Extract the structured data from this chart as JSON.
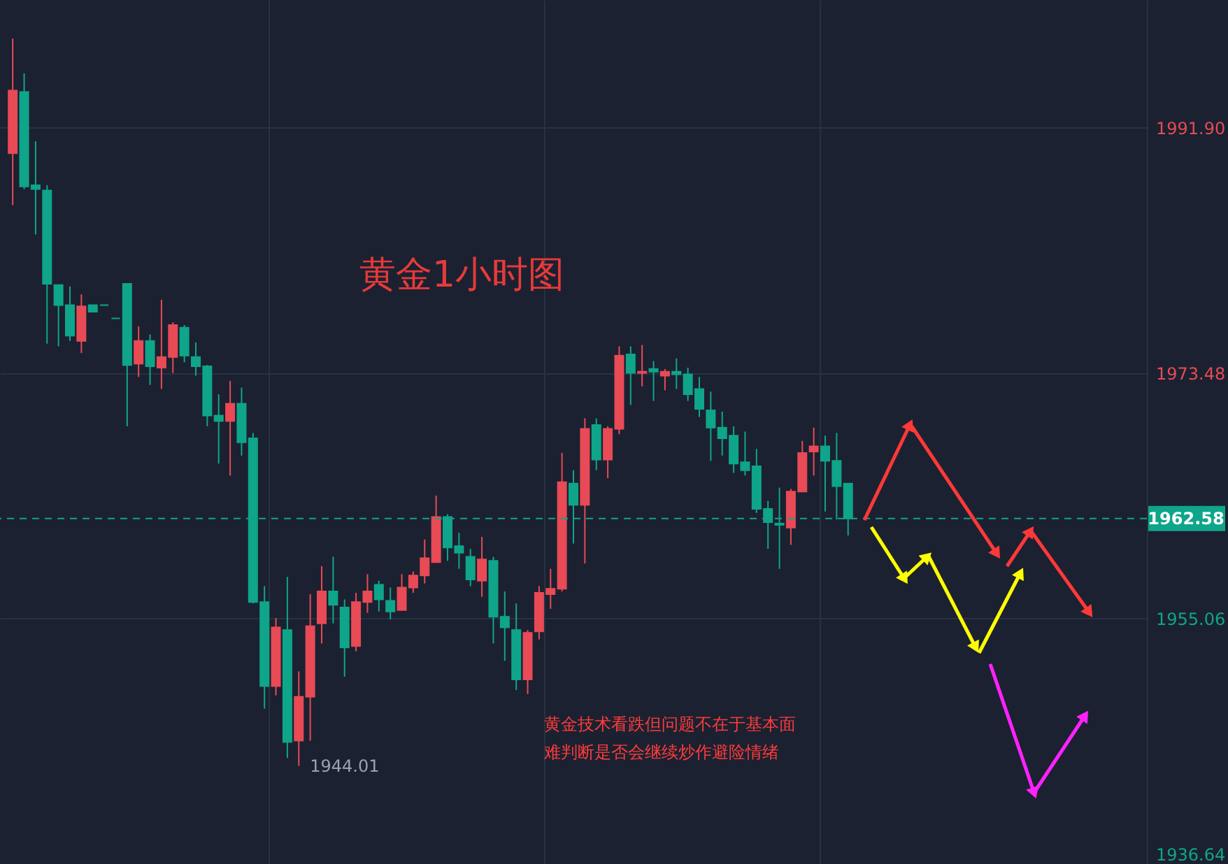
{
  "chart_data": {
    "type": "candlestick",
    "title": "黄金1小时图",
    "categories": [
      null,
      null,
      null,
      null,
      null,
      null,
      null,
      null,
      null,
      null,
      null,
      null,
      null,
      null,
      null,
      null,
      null,
      null,
      null,
      null,
      null,
      null,
      null,
      null,
      null,
      null,
      null,
      null,
      null,
      null,
      null,
      null,
      null,
      null,
      null,
      null,
      null,
      null,
      null,
      null,
      null,
      null,
      null,
      null,
      null,
      null,
      null,
      null,
      null,
      null,
      null,
      null,
      null,
      null,
      null,
      null,
      null,
      null,
      null,
      null,
      null,
      null,
      null,
      null,
      null,
      null,
      null,
      null,
      null,
      null,
      null,
      null,
      null,
      null,
      null,
      null,
      null,
      null,
      null,
      null,
      null,
      null,
      null,
      null,
      null,
      null,
      null,
      null,
      null,
      null,
      null,
      null,
      null,
      null,
      null,
      null,
      null,
      null,
      null
    ],
    "ohlc": [
      [
        1990.0,
        1998.6,
        1986.1,
        1994.7
      ],
      [
        1994.6,
        1996.0,
        1987.3,
        1987.5
      ],
      [
        1987.6,
        1990.9,
        1983.9,
        1987.3
      ],
      [
        1987.2,
        1987.6,
        1975.7,
        1980.2
      ],
      [
        1980.1,
        1980.1,
        1975.5,
        1978.6
      ],
      [
        1978.6,
        1980.0,
        1975.9,
        1976.3
      ],
      [
        1975.9,
        1979.4,
        1975.0,
        1978.5
      ],
      [
        1978.6,
        1978.6,
        1978.1,
        1978.1
      ],
      [
        1978.6,
        1978.6,
        1978.6,
        1978.6
      ],
      [
        1977.6,
        1977.6,
        1977.6,
        1977.6
      ],
      [
        1980.2,
        1980.2,
        1969.5,
        1974.1
      ],
      [
        1974.2,
        1977.0,
        1973.2,
        1975.9
      ],
      [
        1975.9,
        1976.4,
        1972.6,
        1974.0
      ],
      [
        1973.9,
        1979.0,
        1972.3,
        1974.7
      ],
      [
        1974.7,
        1977.3,
        1973.5,
        1977.1
      ],
      [
        1976.9,
        1977.1,
        1974.3,
        1974.8
      ],
      [
        1974.7,
        1975.8,
        1973.3,
        1974.0
      ],
      [
        1974.0,
        1974.1,
        1969.5,
        1970.3
      ],
      [
        1970.3,
        1971.9,
        1966.7,
        1969.9
      ],
      [
        1969.9,
        1972.9,
        1965.8,
        1971.2
      ],
      [
        1971.2,
        1972.4,
        1967.3,
        1968.3
      ],
      [
        1968.6,
        1969.0,
        1956.2,
        1956.3
      ],
      [
        1956.3,
        1957.5,
        1948.3,
        1950.0
      ],
      [
        1950.0,
        1955.1,
        1949.3,
        1954.4
      ],
      [
        1954.2,
        1958.2,
        1944.6,
        1945.8
      ],
      [
        1945.9,
        1951.1,
        1944.01,
        1949.2
      ],
      [
        1949.2,
        1956.9,
        1945.9,
        1954.5
      ],
      [
        1954.7,
        1959.0,
        1953.2,
        1957.1
      ],
      [
        1957.1,
        1959.7,
        1954.7,
        1956.1
      ],
      [
        1955.9,
        1956.5,
        1950.7,
        1952.9
      ],
      [
        1953.0,
        1957.0,
        1952.6,
        1956.3
      ],
      [
        1956.3,
        1958.4,
        1955.5,
        1957.1
      ],
      [
        1957.6,
        1957.9,
        1955.6,
        1956.5
      ],
      [
        1956.4,
        1957.4,
        1955.0,
        1955.6
      ],
      [
        1955.7,
        1958.4,
        1955.7,
        1957.4
      ],
      [
        1957.4,
        1958.6,
        1957.0,
        1958.3
      ],
      [
        1958.3,
        1961.0,
        1957.7,
        1959.6
      ],
      [
        1959.3,
        1964.3,
        1959.3,
        1962.7
      ],
      [
        1962.7,
        1962.9,
        1959.4,
        1960.4
      ],
      [
        1960.5,
        1961.5,
        1958.8,
        1960.0
      ],
      [
        1959.7,
        1960.3,
        1957.5,
        1958.0
      ],
      [
        1957.9,
        1961.2,
        1956.7,
        1959.5
      ],
      [
        1959.4,
        1959.7,
        1953.2,
        1955.2
      ],
      [
        1955.2,
        1957.1,
        1951.9,
        1954.4
      ],
      [
        1954.2,
        1956.2,
        1949.7,
        1950.5
      ],
      [
        1950.5,
        1954.2,
        1949.4,
        1954.0
      ],
      [
        1954.1,
        1957.5,
        1953.5,
        1957.0
      ],
      [
        1956.9,
        1958.8,
        1955.8,
        1957.3
      ],
      [
        1957.3,
        1967.5,
        1957.1,
        1965.3
      ],
      [
        1965.2,
        1966.2,
        1960.7,
        1963.6
      ],
      [
        1963.6,
        1970.1,
        1959.2,
        1969.3
      ],
      [
        1969.6,
        1970.1,
        1966.2,
        1967.0
      ],
      [
        1967.0,
        1969.5,
        1965.6,
        1969.3
      ],
      [
        1969.3,
        1975.5,
        1968.9,
        1974.8
      ],
      [
        1974.9,
        1975.5,
        1971.1,
        1973.5
      ],
      [
        1973.5,
        1975.6,
        1972.5,
        1973.6
      ],
      [
        1973.8,
        1974.4,
        1971.4,
        1973.6
      ],
      [
        1973.3,
        1973.8,
        1972.2,
        1973.6
      ],
      [
        1973.6,
        1974.6,
        1972.3,
        1973.4
      ],
      [
        1973.4,
        1973.9,
        1971.4,
        1971.9
      ],
      [
        1972.3,
        1973.2,
        1970.2,
        1970.8
      ],
      [
        1970.7,
        1972.1,
        1966.9,
        1969.4
      ],
      [
        1969.4,
        1970.6,
        1967.3,
        1968.6
      ],
      [
        1968.8,
        1969.5,
        1966.0,
        1966.7
      ],
      [
        1966.8,
        1969.1,
        1965.8,
        1966.2
      ],
      [
        1966.5,
        1967.8,
        1963.0,
        1963.3
      ],
      [
        1963.3,
        1963.9,
        1960.3,
        1962.3
      ],
      [
        1962.2,
        1964.9,
        1958.8,
        1962.1
      ],
      [
        1961.9,
        1964.8,
        1960.6,
        1964.6
      ],
      [
        1964.6,
        1968.4,
        1964.6,
        1967.5
      ],
      [
        1967.6,
        1969.4,
        1965.8,
        1968.0
      ],
      [
        1968.0,
        1968.8,
        1963.1,
        1966.9
      ],
      [
        1966.9,
        1969.0,
        1962.5,
        1965.0
      ],
      [
        1965.2,
        1965.2,
        1961.3,
        1962.58
      ],
      null,
      null,
      null,
      null,
      null,
      null,
      null,
      null,
      null,
      null,
      null,
      null,
      null,
      null,
      null,
      null,
      null,
      null,
      null,
      null,
      null,
      null,
      null,
      null,
      null
    ],
    "colors": [
      "#e84a56",
      "#0fa58a",
      "#0fa58a",
      "#0fa58a",
      "#0fa58a",
      "#0fa58a",
      "#e84a56",
      "#0fa58a",
      "#0fa58a",
      "#0fa58a",
      "#0fa58a",
      "#e84a56",
      "#0fa58a",
      "#e84a56",
      "#e84a56",
      "#0fa58a",
      "#0fa58a",
      "#0fa58a",
      "#0fa58a",
      "#e84a56",
      "#0fa58a",
      "#0fa58a",
      "#0fa58a",
      "#e84a56",
      "#0fa58a",
      "#e84a56",
      "#e84a56",
      "#e84a56",
      "#0fa58a",
      "#0fa58a",
      "#e84a56",
      "#e84a56",
      "#0fa58a",
      "#0fa58a",
      "#e84a56",
      "#e84a56",
      "#e84a56",
      "#e84a56",
      "#0fa58a",
      "#0fa58a",
      "#0fa58a",
      "#e84a56",
      "#0fa58a",
      "#0fa58a",
      "#0fa58a",
      "#e84a56",
      "#e84a56",
      "#e84a56",
      "#e84a56",
      "#0fa58a",
      "#e84a56",
      "#0fa58a",
      "#e84a56",
      "#e84a56",
      "#0fa58a",
      "#e84a56",
      "#0fa58a",
      "#e84a56",
      "#0fa58a",
      "#0fa58a",
      "#0fa58a",
      "#0fa58a",
      "#0fa58a",
      "#0fa58a",
      "#0fa58a",
      "#0fa58a",
      "#0fa58a",
      "#0fa58a",
      "#e84a56",
      "#e84a56",
      "#e84a56",
      "#0fa58a",
      "#0fa58a",
      "#0fa58a",
      null,
      null,
      null,
      null,
      null,
      null,
      null,
      null,
      null,
      null,
      null,
      null,
      null,
      null,
      null,
      null,
      null,
      null,
      null,
      null,
      null,
      null,
      null,
      null,
      null
    ],
    "ylim": [
      1936.64,
      2001.5
    ],
    "yticks": [
      {
        "value": 1991.9,
        "label": "1991.90"
      },
      1973.48,
      1955.06,
      1936.64
    ],
    "ref_lines": [
      {
        "axis": "y",
        "value": 1962.58,
        "label": "1962.58",
        "color": "#0fa58a",
        "line_style": "dashed"
      }
    ],
    "annotations": [
      "黄金技术看跌但问题不在于基本面",
      "难判断是否会继续炒作避险情绪",
      "1944.01"
    ],
    "grid": true,
    "tick_labels": "y"
  }
}
